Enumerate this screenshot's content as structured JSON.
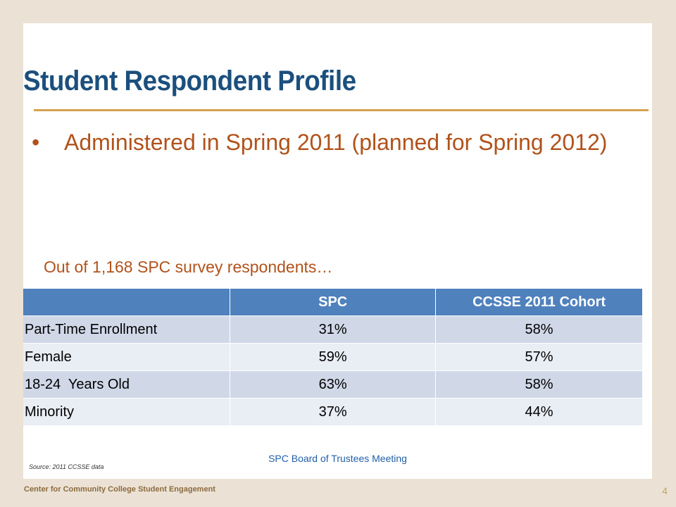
{
  "slide": {
    "title": "Student Respondent Profile",
    "bullet_marker": "•",
    "bullet_text": "Administered in Spring 2011 (planned for Spring 2012)",
    "subheading": "Out of 1,168 SPC survey respondents…",
    "table": {
      "headers": [
        "",
        "SPC",
        "CCSSE 2011 Cohort"
      ],
      "rows": [
        {
          "label": "Part-Time Enrollment",
          "spc": "31%",
          "cohort": "58%"
        },
        {
          "label": "Female",
          "spc": "59%",
          "cohort": "57%"
        },
        {
          "label": "18-24  Years Old",
          "spc": "63%",
          "cohort": "58%"
        },
        {
          "label": "Minority",
          "spc": "37%",
          "cohort": "44%"
        }
      ]
    },
    "footer": "SPC Board of Trustees Meeting",
    "source": "Source: 2011 CCSSE data"
  },
  "frame": {
    "organization": "Center for Community College Student Engagement",
    "page_number": "4"
  },
  "colors": {
    "title": "#1b4f7d",
    "accent_rule": "#d6a24f",
    "bullet_text": "#b1521b",
    "table_header": "#4f81bd",
    "row_odd": "#d0d8e8",
    "row_even": "#e9edf4",
    "background": "#ebe2d5"
  }
}
